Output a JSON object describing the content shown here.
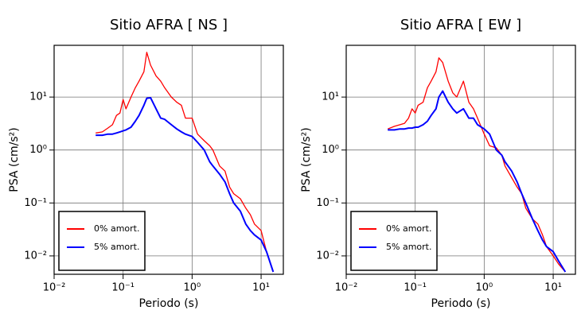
{
  "chart_data": [
    {
      "type": "line",
      "title": "Sitio AFRA [ NS ]",
      "x_label": "Periodo (s)",
      "y_label": "PSA (cm/s²)",
      "x_scale": "log",
      "y_scale": "log",
      "grid": true,
      "legend_position": "lower left",
      "xlim": [
        0.01,
        21
      ],
      "ylim": [
        0.0045,
        95
      ],
      "xticks": [
        {
          "value": 0.01,
          "label": "10⁻²"
        },
        {
          "value": 0.1,
          "label": "10⁻¹"
        },
        {
          "value": 1,
          "label": "10⁰"
        },
        {
          "value": 10,
          "label": "10¹"
        }
      ],
      "yticks": [
        {
          "value": 0.01,
          "label": "10⁻²"
        },
        {
          "value": 0.1,
          "label": "10⁻¹"
        },
        {
          "value": 1,
          "label": "10⁰"
        },
        {
          "value": 10,
          "label": "10¹"
        }
      ],
      "x": [
        0.04,
        0.05,
        0.06,
        0.07,
        0.08,
        0.09,
        0.1,
        0.11,
        0.13,
        0.15,
        0.17,
        0.2,
        0.22,
        0.25,
        0.3,
        0.35,
        0.4,
        0.5,
        0.6,
        0.7,
        0.8,
        1,
        1.2,
        1.5,
        1.8,
        2,
        2.5,
        3,
        3.5,
        4,
        5,
        6,
        7,
        8,
        10,
        12,
        15
      ],
      "series": [
        {
          "name": "0% amort.",
          "color": "#ff0000",
          "values": [
            2.1,
            2.2,
            2.6,
            3,
            4.5,
            5,
            9,
            6,
            10,
            15,
            20,
            30,
            70,
            40,
            25,
            20,
            15,
            10,
            8,
            7,
            4,
            4,
            2,
            1.5,
            1.2,
            1,
            0.5,
            0.4,
            0.2,
            0.15,
            0.12,
            0.08,
            0.06,
            0.04,
            0.03,
            0.012,
            0.005
          ]
        },
        {
          "name": "5% amort.",
          "color": "#0000ff",
          "values": [
            1.9,
            1.9,
            2.0,
            2.0,
            2.1,
            2.2,
            2.3,
            2.4,
            2.7,
            3.5,
            4.5,
            7,
            9.5,
            9.7,
            6,
            4,
            3.8,
            3,
            2.5,
            2.2,
            2,
            1.8,
            1.4,
            1,
            0.6,
            0.5,
            0.35,
            0.25,
            0.15,
            0.1,
            0.07,
            0.04,
            0.03,
            0.025,
            0.02,
            0.012,
            0.005
          ]
        }
      ]
    },
    {
      "type": "line",
      "title": "Sitio AFRA [ EW ]",
      "x_label": "Periodo (s)",
      "y_label": "PSA (cm/s²)",
      "x_scale": "log",
      "y_scale": "log",
      "grid": true,
      "legend_position": "lower left",
      "xlim": [
        0.01,
        21
      ],
      "ylim": [
        0.0045,
        95
      ],
      "xticks": [
        {
          "value": 0.01,
          "label": "10⁻²"
        },
        {
          "value": 0.1,
          "label": "10⁻¹"
        },
        {
          "value": 1,
          "label": "10⁰"
        },
        {
          "value": 10,
          "label": "10¹"
        }
      ],
      "yticks": [
        {
          "value": 0.01,
          "label": "10⁻²"
        },
        {
          "value": 0.1,
          "label": "10⁻¹"
        },
        {
          "value": 1,
          "label": "10⁰"
        },
        {
          "value": 10,
          "label": "10¹"
        }
      ],
      "x": [
        0.04,
        0.05,
        0.06,
        0.07,
        0.08,
        0.09,
        0.1,
        0.11,
        0.13,
        0.15,
        0.17,
        0.2,
        0.22,
        0.25,
        0.3,
        0.35,
        0.4,
        0.5,
        0.6,
        0.7,
        0.8,
        1,
        1.2,
        1.5,
        1.8,
        2,
        2.5,
        3,
        3.5,
        4,
        5,
        6,
        7,
        8,
        10,
        12,
        15
      ],
      "series": [
        {
          "name": "0% amort.",
          "color": "#ff0000",
          "values": [
            2.5,
            2.8,
            3,
            3.2,
            4,
            6,
            5,
            7,
            8,
            15,
            20,
            30,
            55,
            45,
            20,
            12,
            10,
            20,
            8,
            6,
            4,
            2,
            1.2,
            1.1,
            0.8,
            0.5,
            0.3,
            0.2,
            0.15,
            0.08,
            0.05,
            0.04,
            0.025,
            0.015,
            0.01,
            0.007,
            0.005
          ]
        },
        {
          "name": "5% amort.",
          "color": "#0000ff",
          "values": [
            2.4,
            2.4,
            2.5,
            2.5,
            2.6,
            2.6,
            2.7,
            2.7,
            3,
            3.5,
            4.5,
            6,
            10,
            13,
            8,
            6,
            5,
            6,
            4,
            4,
            3,
            2.5,
            2,
            1,
            0.8,
            0.6,
            0.4,
            0.25,
            0.15,
            0.1,
            0.05,
            0.03,
            0.02,
            0.015,
            0.012,
            0.008,
            0.005
          ]
        }
      ]
    }
  ]
}
